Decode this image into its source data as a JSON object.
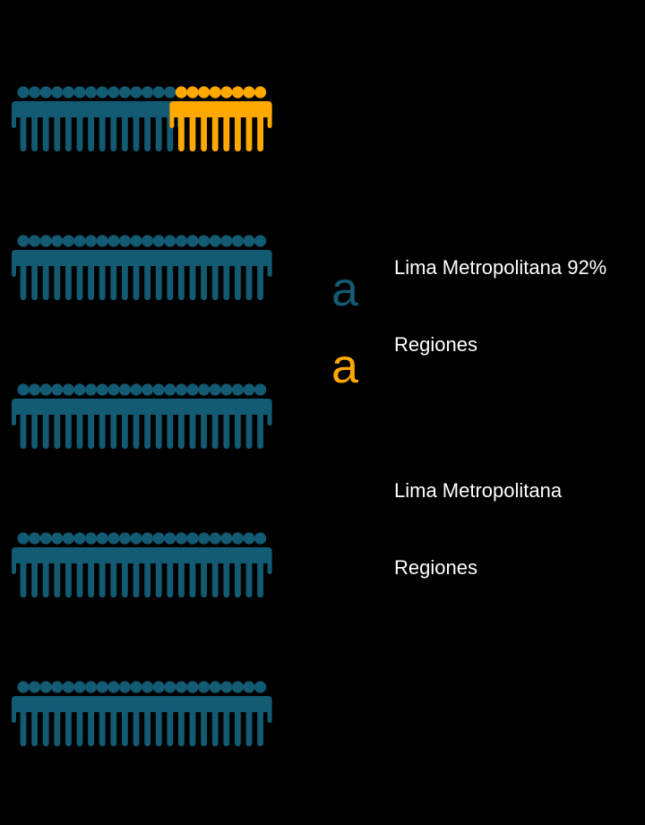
{
  "colors": {
    "lima": "#135a73",
    "regiones": "#ffa800",
    "background": "#000000",
    "text": "#ffffff"
  },
  "legend": {
    "glyph_lima": "a",
    "glyph_regiones": "a",
    "group1": {
      "lima_label": "Lima Metropolitana 92%",
      "regiones_label": "Regiones"
    },
    "group2": {
      "lima_label": "Lima Metropolitana",
      "regiones_label": "Regiones"
    }
  },
  "chart_data": {
    "type": "bar",
    "icon": "person-icon",
    "icons_per_row": 22,
    "series": [
      {
        "name": "Lima Metropolitana",
        "color": "#135a73",
        "icon_counts": [
          14,
          22,
          22,
          22,
          22
        ]
      },
      {
        "name": "Regiones",
        "color": "#ffa800",
        "icon_counts": [
          8,
          0,
          0,
          0,
          0
        ]
      }
    ]
  }
}
